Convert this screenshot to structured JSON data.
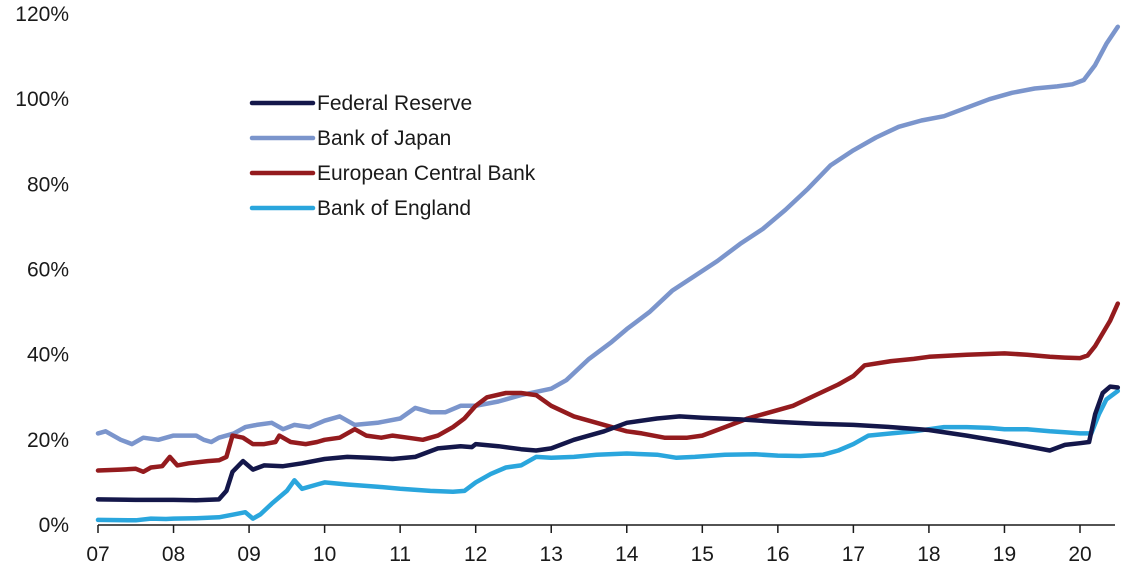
{
  "chart_data": {
    "type": "line",
    "title": "",
    "xlabel": "",
    "ylabel": "",
    "x_ticks": [
      "07",
      "08",
      "09",
      "10",
      "11",
      "12",
      "13",
      "14",
      "15",
      "16",
      "17",
      "18",
      "19",
      "20"
    ],
    "y_ticks": [
      "0%",
      "20%",
      "40%",
      "60%",
      "80%",
      "100%",
      "120%"
    ],
    "xlim": [
      2007,
      2020.5
    ],
    "ylim": [
      0,
      120
    ],
    "grid": false,
    "legend_position": "upper-left",
    "series": [
      {
        "name": "Federal Reserve",
        "color": "#14174a",
        "points": [
          [
            2007.0,
            6.0
          ],
          [
            2007.5,
            5.9
          ],
          [
            2008.0,
            5.9
          ],
          [
            2008.3,
            5.8
          ],
          [
            2008.6,
            6.0
          ],
          [
            2008.7,
            8.0
          ],
          [
            2008.78,
            12.5
          ],
          [
            2008.92,
            15.0
          ],
          [
            2009.05,
            13.0
          ],
          [
            2009.2,
            14.0
          ],
          [
            2009.45,
            13.8
          ],
          [
            2009.7,
            14.5
          ],
          [
            2010.0,
            15.5
          ],
          [
            2010.3,
            16.0
          ],
          [
            2010.6,
            15.8
          ],
          [
            2010.9,
            15.5
          ],
          [
            2011.2,
            16.0
          ],
          [
            2011.5,
            18.0
          ],
          [
            2011.8,
            18.5
          ],
          [
            2011.95,
            18.3
          ],
          [
            2012.0,
            19.0
          ],
          [
            2012.3,
            18.5
          ],
          [
            2012.6,
            17.8
          ],
          [
            2012.8,
            17.5
          ],
          [
            2013.0,
            18.0
          ],
          [
            2013.3,
            20.0
          ],
          [
            2013.7,
            22.0
          ],
          [
            2014.0,
            24.0
          ],
          [
            2014.4,
            25.0
          ],
          [
            2014.7,
            25.5
          ],
          [
            2015.0,
            25.2
          ],
          [
            2015.5,
            24.8
          ],
          [
            2016.0,
            24.2
          ],
          [
            2016.5,
            23.8
          ],
          [
            2017.0,
            23.5
          ],
          [
            2017.5,
            23.0
          ],
          [
            2018.0,
            22.3
          ],
          [
            2018.5,
            21.0
          ],
          [
            2019.0,
            19.5
          ],
          [
            2019.3,
            18.5
          ],
          [
            2019.6,
            17.5
          ],
          [
            2019.8,
            18.8
          ],
          [
            2020.0,
            19.2
          ],
          [
            2020.12,
            19.5
          ],
          [
            2020.2,
            26.0
          ],
          [
            2020.3,
            31.0
          ],
          [
            2020.4,
            32.5
          ],
          [
            2020.5,
            32.3
          ]
        ]
      },
      {
        "name": "Bank of Japan",
        "color": "#7b95cc",
        "points": [
          [
            2007.0,
            21.5
          ],
          [
            2007.1,
            22.0
          ],
          [
            2007.3,
            20.0
          ],
          [
            2007.45,
            19.0
          ],
          [
            2007.6,
            20.5
          ],
          [
            2007.8,
            20.0
          ],
          [
            2008.0,
            21.0
          ],
          [
            2008.3,
            21.0
          ],
          [
            2008.4,
            20.0
          ],
          [
            2008.5,
            19.5
          ],
          [
            2008.6,
            20.5
          ],
          [
            2008.8,
            21.5
          ],
          [
            2008.95,
            23.0
          ],
          [
            2009.1,
            23.5
          ],
          [
            2009.3,
            24.0
          ],
          [
            2009.45,
            22.5
          ],
          [
            2009.6,
            23.5
          ],
          [
            2009.8,
            23.0
          ],
          [
            2010.0,
            24.5
          ],
          [
            2010.2,
            25.5
          ],
          [
            2010.4,
            23.5
          ],
          [
            2010.7,
            24.0
          ],
          [
            2011.0,
            25.0
          ],
          [
            2011.2,
            27.5
          ],
          [
            2011.4,
            26.5
          ],
          [
            2011.6,
            26.5
          ],
          [
            2011.8,
            28.0
          ],
          [
            2012.0,
            28.0
          ],
          [
            2012.3,
            29.0
          ],
          [
            2012.6,
            30.5
          ],
          [
            2013.0,
            32.0
          ],
          [
            2013.2,
            34.0
          ],
          [
            2013.5,
            39.0
          ],
          [
            2013.8,
            43.0
          ],
          [
            2014.0,
            46.0
          ],
          [
            2014.3,
            50.0
          ],
          [
            2014.6,
            55.0
          ],
          [
            2014.9,
            58.5
          ],
          [
            2015.2,
            62.0
          ],
          [
            2015.5,
            66.0
          ],
          [
            2015.8,
            69.5
          ],
          [
            2016.1,
            74.0
          ],
          [
            2016.4,
            79.0
          ],
          [
            2016.7,
            84.5
          ],
          [
            2017.0,
            88.0
          ],
          [
            2017.3,
            91.0
          ],
          [
            2017.6,
            93.5
          ],
          [
            2017.9,
            95.0
          ],
          [
            2018.2,
            96.0
          ],
          [
            2018.5,
            98.0
          ],
          [
            2018.8,
            100.0
          ],
          [
            2019.1,
            101.5
          ],
          [
            2019.4,
            102.5
          ],
          [
            2019.7,
            103.0
          ],
          [
            2019.9,
            103.5
          ],
          [
            2020.05,
            104.5
          ],
          [
            2020.2,
            108.0
          ],
          [
            2020.35,
            113.0
          ],
          [
            2020.5,
            117.0
          ]
        ]
      },
      {
        "name": "European Central Bank",
        "color": "#941b1e",
        "points": [
          [
            2007.0,
            12.8
          ],
          [
            2007.3,
            13.0
          ],
          [
            2007.5,
            13.2
          ],
          [
            2007.6,
            12.5
          ],
          [
            2007.7,
            13.5
          ],
          [
            2007.85,
            13.8
          ],
          [
            2007.95,
            16.0
          ],
          [
            2008.05,
            14.0
          ],
          [
            2008.2,
            14.5
          ],
          [
            2008.45,
            15.0
          ],
          [
            2008.6,
            15.2
          ],
          [
            2008.7,
            16.0
          ],
          [
            2008.78,
            21.0
          ],
          [
            2008.92,
            20.5
          ],
          [
            2009.05,
            19.0
          ],
          [
            2009.2,
            19.0
          ],
          [
            2009.35,
            19.5
          ],
          [
            2009.4,
            21.0
          ],
          [
            2009.55,
            19.5
          ],
          [
            2009.75,
            19.0
          ],
          [
            2009.9,
            19.5
          ],
          [
            2010.0,
            20.0
          ],
          [
            2010.2,
            20.5
          ],
          [
            2010.4,
            22.5
          ],
          [
            2010.55,
            21.0
          ],
          [
            2010.75,
            20.5
          ],
          [
            2010.9,
            21.0
          ],
          [
            2011.1,
            20.5
          ],
          [
            2011.3,
            20.0
          ],
          [
            2011.5,
            21.0
          ],
          [
            2011.7,
            23.0
          ],
          [
            2011.85,
            25.0
          ],
          [
            2012.0,
            28.0
          ],
          [
            2012.15,
            30.0
          ],
          [
            2012.4,
            31.0
          ],
          [
            2012.6,
            31.0
          ],
          [
            2012.8,
            30.5
          ],
          [
            2013.0,
            28.0
          ],
          [
            2013.3,
            25.5
          ],
          [
            2013.6,
            24.0
          ],
          [
            2014.0,
            22.0
          ],
          [
            2014.2,
            21.5
          ],
          [
            2014.5,
            20.5
          ],
          [
            2014.8,
            20.5
          ],
          [
            2015.0,
            21.0
          ],
          [
            2015.3,
            23.0
          ],
          [
            2015.6,
            25.0
          ],
          [
            2015.9,
            26.5
          ],
          [
            2016.2,
            28.0
          ],
          [
            2016.5,
            30.5
          ],
          [
            2016.8,
            33.0
          ],
          [
            2017.0,
            35.0
          ],
          [
            2017.15,
            37.5
          ],
          [
            2017.5,
            38.5
          ],
          [
            2017.8,
            39.0
          ],
          [
            2018.0,
            39.5
          ],
          [
            2018.5,
            40.0
          ],
          [
            2019.0,
            40.3
          ],
          [
            2019.3,
            40.0
          ],
          [
            2019.6,
            39.5
          ],
          [
            2019.8,
            39.3
          ],
          [
            2020.0,
            39.2
          ],
          [
            2020.1,
            39.8
          ],
          [
            2020.2,
            42.0
          ],
          [
            2020.4,
            48.0
          ],
          [
            2020.5,
            52.0
          ]
        ]
      },
      {
        "name": "Bank of England",
        "color": "#2aa6dd",
        "points": [
          [
            2007.0,
            1.2
          ],
          [
            2007.5,
            1.1
          ],
          [
            2007.7,
            1.5
          ],
          [
            2007.9,
            1.4
          ],
          [
            2008.0,
            1.5
          ],
          [
            2008.3,
            1.6
          ],
          [
            2008.6,
            1.8
          ],
          [
            2008.8,
            2.5
          ],
          [
            2008.95,
            3.0
          ],
          [
            2009.05,
            1.5
          ],
          [
            2009.15,
            2.5
          ],
          [
            2009.3,
            5.0
          ],
          [
            2009.5,
            8.0
          ],
          [
            2009.6,
            10.5
          ],
          [
            2009.7,
            8.5
          ],
          [
            2009.9,
            9.5
          ],
          [
            2010.0,
            10.0
          ],
          [
            2010.3,
            9.5
          ],
          [
            2010.7,
            9.0
          ],
          [
            2011.0,
            8.5
          ],
          [
            2011.4,
            8.0
          ],
          [
            2011.7,
            7.8
          ],
          [
            2011.85,
            8.0
          ],
          [
            2012.0,
            10.0
          ],
          [
            2012.2,
            12.0
          ],
          [
            2012.4,
            13.5
          ],
          [
            2012.6,
            14.0
          ],
          [
            2012.8,
            16.0
          ],
          [
            2013.0,
            15.8
          ],
          [
            2013.3,
            16.0
          ],
          [
            2013.6,
            16.5
          ],
          [
            2014.0,
            16.8
          ],
          [
            2014.4,
            16.5
          ],
          [
            2014.65,
            15.8
          ],
          [
            2014.9,
            16.0
          ],
          [
            2015.3,
            16.5
          ],
          [
            2015.7,
            16.6
          ],
          [
            2016.0,
            16.3
          ],
          [
            2016.3,
            16.2
          ],
          [
            2016.6,
            16.5
          ],
          [
            2016.8,
            17.5
          ],
          [
            2017.0,
            19.0
          ],
          [
            2017.2,
            21.0
          ],
          [
            2017.5,
            21.5
          ],
          [
            2017.8,
            22.0
          ],
          [
            2018.0,
            22.5
          ],
          [
            2018.2,
            23.0
          ],
          [
            2018.5,
            23.0
          ],
          [
            2018.8,
            22.8
          ],
          [
            2019.0,
            22.5
          ],
          [
            2019.3,
            22.5
          ],
          [
            2019.6,
            22.0
          ],
          [
            2019.8,
            21.8
          ],
          [
            2020.0,
            21.5
          ],
          [
            2020.15,
            21.5
          ],
          [
            2020.25,
            26.0
          ],
          [
            2020.35,
            29.5
          ],
          [
            2020.5,
            31.5
          ]
        ]
      }
    ]
  }
}
